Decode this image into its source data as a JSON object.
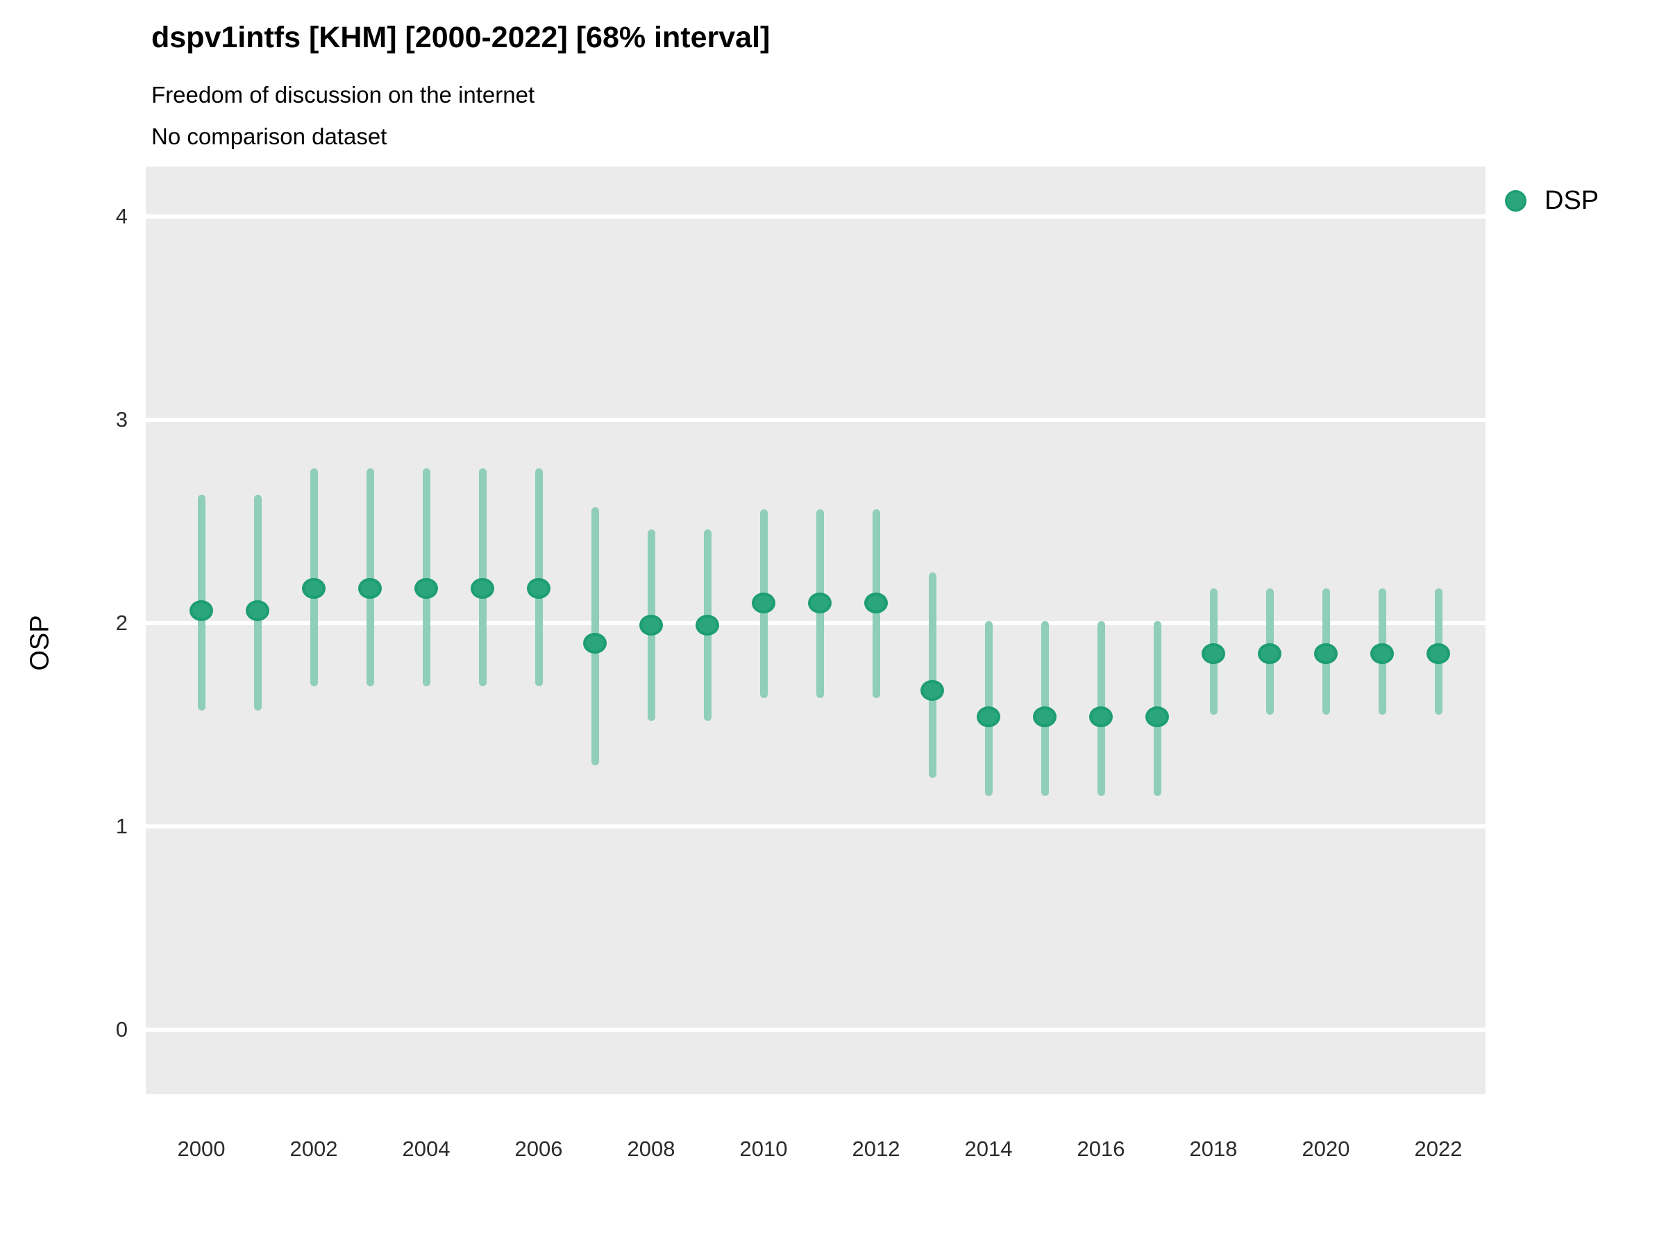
{
  "header": {
    "title": "dspv1intfs [KHM] [2000-2022] [68% interval]",
    "subtitle_line1": "Freedom of discussion on the internet",
    "subtitle_line2": "No comparison dataset"
  },
  "legend": {
    "label": "DSP",
    "position": "right"
  },
  "axes": {
    "y_title": "OSP",
    "y_ticks": [
      0,
      1,
      2,
      3,
      4
    ],
    "x_tick_labels": [
      2000,
      2002,
      2004,
      2006,
      2008,
      2010,
      2012,
      2014,
      2016,
      2018,
      2020,
      2022
    ]
  },
  "colors": {
    "point_fill": "#2AA57C",
    "point_stroke": "#1D9E70",
    "interval_line": "#8FCEB9",
    "panel_background": "#EBEBEB",
    "gridline": "#FFFFFF",
    "tick_text": "#2b2b2b"
  },
  "chart_data": {
    "type": "scatter",
    "variant": "pointrange-interval",
    "title": "dspv1intfs [KHM] [2000-2022] [68% interval]",
    "subtitle": [
      "Freedom of discussion on the internet",
      "No comparison dataset"
    ],
    "xlabel": "",
    "ylabel": "OSP",
    "interval": "68%",
    "x": [
      2000,
      2001,
      2002,
      2003,
      2004,
      2005,
      2006,
      2007,
      2008,
      2009,
      2010,
      2011,
      2012,
      2013,
      2014,
      2015,
      2016,
      2017,
      2018,
      2019,
      2020,
      2021,
      2022
    ],
    "series": [
      {
        "name": "DSP",
        "values": [
          2.06,
          2.06,
          2.17,
          2.17,
          2.17,
          2.17,
          2.17,
          1.9,
          1.99,
          1.99,
          2.1,
          2.1,
          2.1,
          1.67,
          1.54,
          1.54,
          1.54,
          1.54,
          1.85,
          1.85,
          1.85,
          1.85,
          1.85
        ],
        "lower": [
          1.57,
          1.57,
          1.69,
          1.69,
          1.69,
          1.69,
          1.69,
          1.3,
          1.52,
          1.52,
          1.63,
          1.63,
          1.63,
          1.24,
          1.15,
          1.15,
          1.15,
          1.15,
          1.55,
          1.55,
          1.55,
          1.55,
          1.55
        ],
        "upper": [
          2.63,
          2.63,
          2.76,
          2.76,
          2.76,
          2.76,
          2.76,
          2.57,
          2.46,
          2.46,
          2.56,
          2.56,
          2.56,
          2.25,
          2.01,
          2.01,
          2.01,
          2.01,
          2.17,
          2.17,
          2.17,
          2.17,
          2.17
        ]
      }
    ],
    "ylim": [
      0,
      4
    ],
    "yticks": [
      0,
      1,
      2,
      3,
      4
    ],
    "xticks": [
      2000,
      2002,
      2004,
      2006,
      2008,
      2010,
      2012,
      2014,
      2016,
      2018,
      2020,
      2022
    ],
    "grid": "horizontal-major-white",
    "legend_position": "right"
  }
}
